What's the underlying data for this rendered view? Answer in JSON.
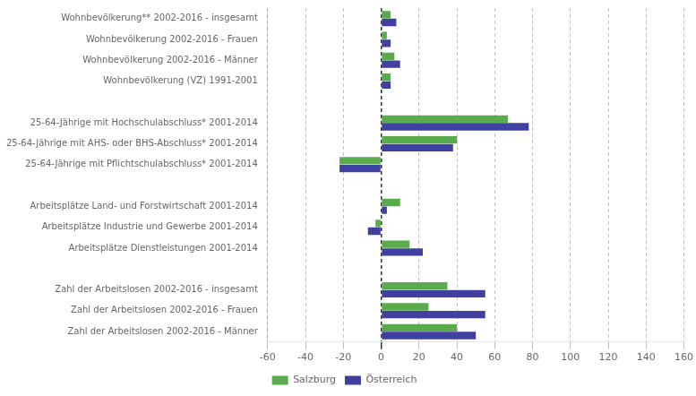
{
  "chart_data": {
    "type": "bar",
    "orientation": "horizontal",
    "categories": [
      "Wohnbevölkerung** 2002-2016 - insgesamt",
      "Wohnbevölkerung 2002-2016 - Frauen",
      "Wohnbevölkerung 2002-2016 - Männer",
      "Wohnbevölkerung (VZ) 1991-2001",
      null,
      "25-64-Jährige mit Hochschulabschluss* 2001-2014",
      "25-64-Jährige mit AHS- oder BHS-Abschluss* 2001-2014",
      "25-64-Jährige mit Pflichtschulabschluss* 2001-2014",
      null,
      "Arbeitsplätze Land- und Forstwirtschaft 2001-2014",
      "Arbeitsplätze Industrie und Gewerbe 2001-2014",
      "Arbeitsplätze Dienstleistungen 2001-2014",
      null,
      "Zahl der Arbeitslosen 2002-2016 - insgesamt",
      "Zahl der Arbeitslosen 2002-2016 - Frauen",
      "Zahl der Arbeitslosen 2002-2016 - Männer"
    ],
    "series": [
      {
        "name": "Salzburg",
        "color": "#5aab4e",
        "values": [
          5,
          3,
          7,
          5,
          null,
          67,
          40,
          -22,
          null,
          10,
          -3,
          15,
          null,
          35,
          25,
          40
        ]
      },
      {
        "name": "Österreich",
        "color": "#4040a0",
        "values": [
          8,
          5,
          10,
          5,
          null,
          78,
          38,
          -22,
          null,
          3,
          -7,
          22,
          null,
          55,
          55,
          50
        ]
      }
    ],
    "xlim": [
      -60,
      160
    ],
    "xticks": [
      -60,
      -40,
      -20,
      0,
      20,
      40,
      60,
      80,
      100,
      120,
      140,
      160
    ],
    "grid": true,
    "legend": "bottom"
  }
}
